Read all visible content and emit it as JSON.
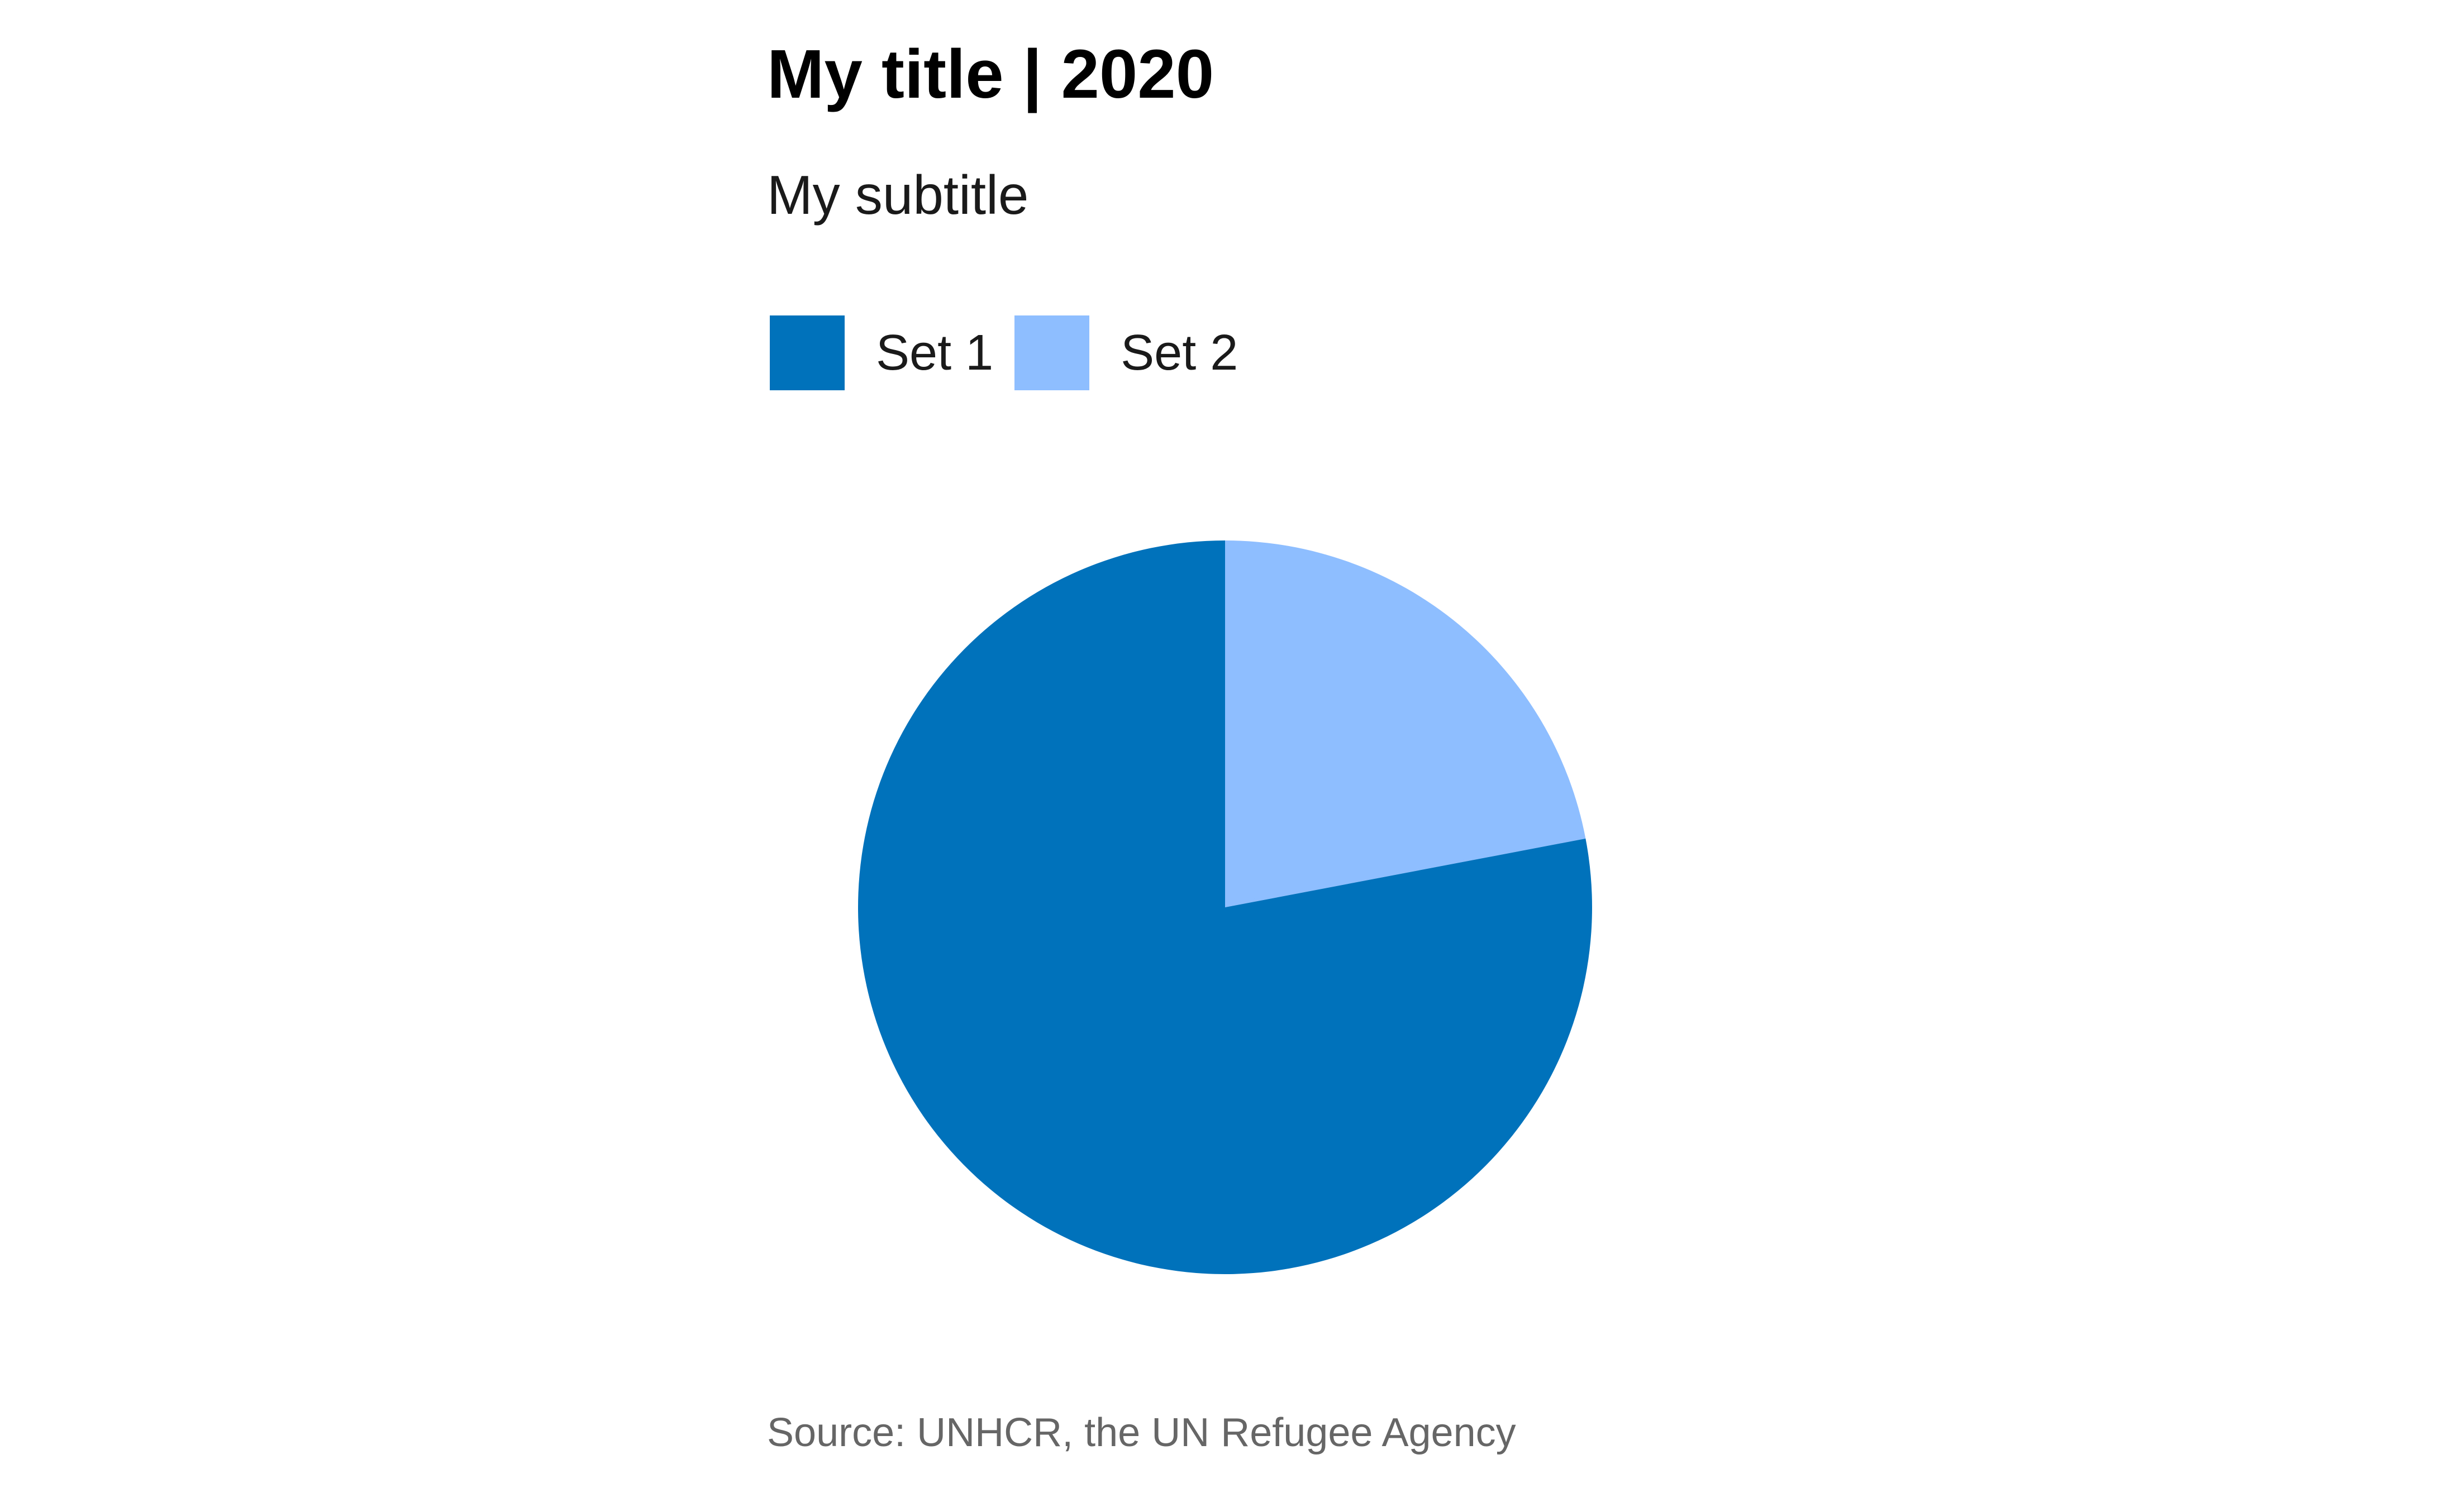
{
  "chart_data": {
    "type": "pie",
    "title": "My title | 2020",
    "subtitle": "My subtitle",
    "caption": "Source: UNHCR, the UN Refugee Agency",
    "legend_position": "top-left",
    "start_angle_deg": 0,
    "direction": "clockwise",
    "slices": [
      {
        "name": "Set 2",
        "value": 22,
        "color": "#8EBEFF"
      },
      {
        "name": "Set 1",
        "value": 78,
        "color": "#0072BC"
      }
    ],
    "legend": [
      {
        "name": "Set 1",
        "color": "#0072BC"
      },
      {
        "name": "Set 2",
        "color": "#8EBEFF"
      }
    ]
  }
}
